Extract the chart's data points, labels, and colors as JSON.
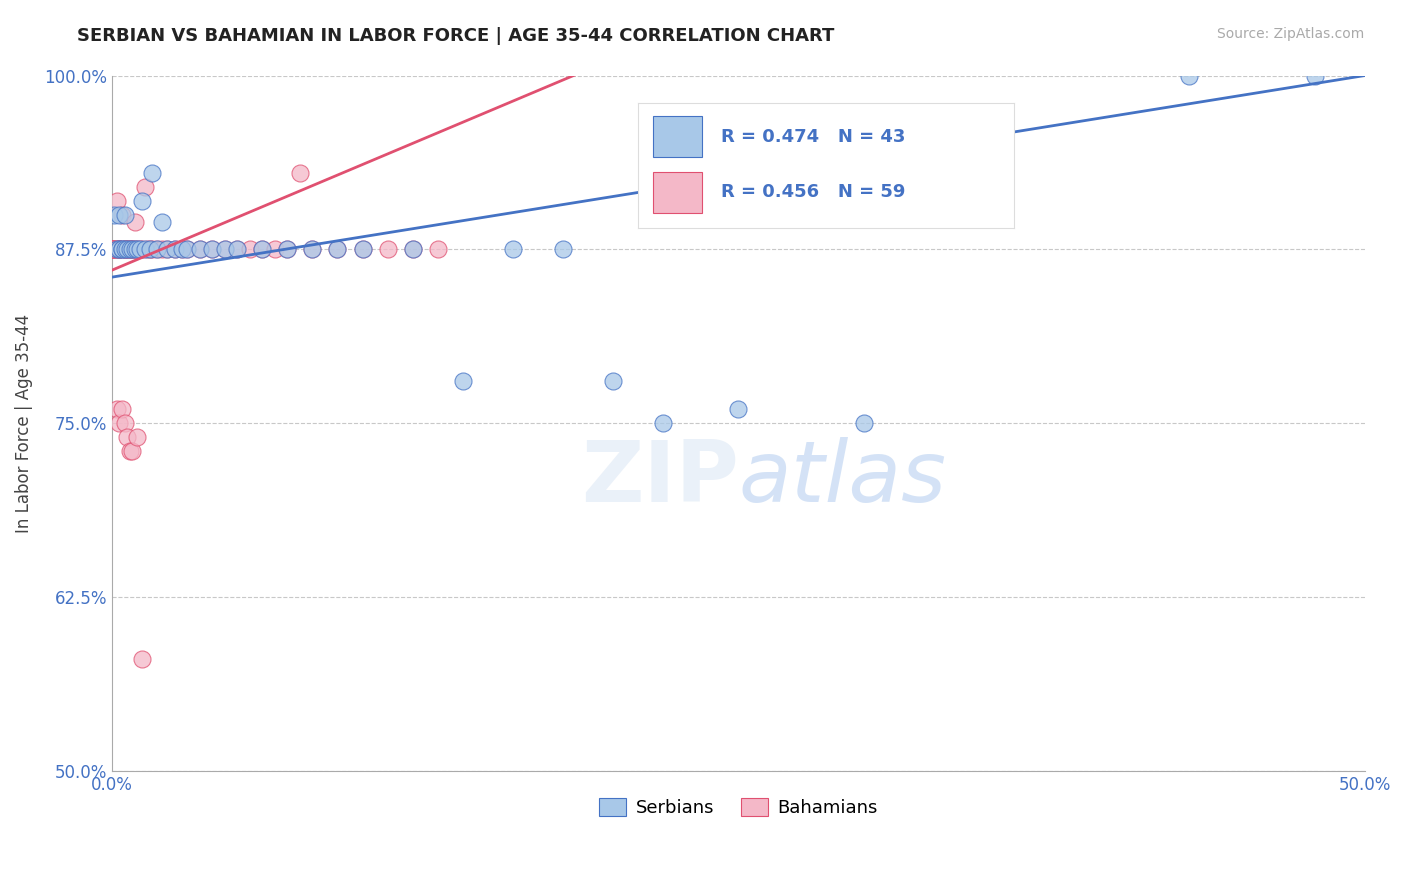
{
  "title": "SERBIAN VS BAHAMIAN IN LABOR FORCE | AGE 35-44 CORRELATION CHART",
  "source": "Source: ZipAtlas.com",
  "ylabel": "In Labor Force | Age 35-44",
  "xlim": [
    0.0,
    0.5
  ],
  "ylim": [
    0.5,
    1.0
  ],
  "yticks": [
    0.5,
    0.625,
    0.75,
    0.875,
    1.0
  ],
  "yticklabels": [
    "50.0%",
    "62.5%",
    "75.0%",
    "87.5%",
    "100.0%"
  ],
  "xtick_show": [
    0.0,
    0.5
  ],
  "xticklabels_show": [
    "0.0%",
    "50.0%"
  ],
  "serbian_color": "#a8c8e8",
  "bahamian_color": "#f4b8c8",
  "serbian_line_color": "#4472c4",
  "bahamian_line_color": "#e05070",
  "R_serbian": 0.474,
  "N_serbian": 43,
  "R_bahamian": 0.456,
  "N_bahamian": 59,
  "serbian_x": [
    0.001,
    0.002,
    0.003,
    0.003,
    0.004,
    0.004,
    0.005,
    0.005,
    0.006,
    0.007,
    0.008,
    0.009,
    0.01,
    0.011,
    0.012,
    0.013,
    0.015,
    0.016,
    0.018,
    0.02,
    0.022,
    0.025,
    0.028,
    0.03,
    0.035,
    0.04,
    0.045,
    0.05,
    0.06,
    0.07,
    0.08,
    0.09,
    0.1,
    0.12,
    0.14,
    0.16,
    0.18,
    0.2,
    0.22,
    0.25,
    0.3,
    0.43,
    0.48
  ],
  "serbian_y": [
    0.9,
    0.875,
    0.875,
    0.9,
    0.875,
    0.875,
    0.875,
    0.9,
    0.875,
    0.875,
    0.875,
    0.875,
    0.875,
    0.875,
    0.91,
    0.875,
    0.875,
    0.93,
    0.875,
    0.895,
    0.875,
    0.875,
    0.875,
    0.875,
    0.875,
    0.875,
    0.875,
    0.875,
    0.875,
    0.875,
    0.875,
    0.875,
    0.875,
    0.875,
    0.78,
    0.875,
    0.875,
    0.78,
    0.75,
    0.76,
    0.75,
    1.0,
    1.0
  ],
  "bahamian_x": [
    0.0,
    0.0,
    0.001,
    0.001,
    0.001,
    0.002,
    0.002,
    0.003,
    0.003,
    0.003,
    0.004,
    0.004,
    0.005,
    0.005,
    0.006,
    0.006,
    0.007,
    0.007,
    0.008,
    0.008,
    0.009,
    0.009,
    0.01,
    0.011,
    0.012,
    0.013,
    0.014,
    0.015,
    0.016,
    0.018,
    0.02,
    0.022,
    0.025,
    0.028,
    0.03,
    0.035,
    0.04,
    0.045,
    0.05,
    0.055,
    0.06,
    0.065,
    0.07,
    0.075,
    0.08,
    0.09,
    0.1,
    0.11,
    0.12,
    0.13,
    0.002,
    0.003,
    0.004,
    0.005,
    0.006,
    0.007,
    0.008,
    0.01,
    0.012
  ],
  "bahamian_y": [
    0.875,
    0.875,
    0.875,
    0.875,
    0.875,
    0.91,
    0.875,
    0.875,
    0.875,
    0.875,
    0.875,
    0.9,
    0.875,
    0.875,
    0.875,
    0.875,
    0.875,
    0.875,
    0.875,
    0.875,
    0.875,
    0.895,
    0.875,
    0.875,
    0.875,
    0.92,
    0.875,
    0.875,
    0.875,
    0.875,
    0.875,
    0.875,
    0.875,
    0.875,
    0.875,
    0.875,
    0.875,
    0.875,
    0.875,
    0.875,
    0.875,
    0.875,
    0.875,
    0.93,
    0.875,
    0.875,
    0.875,
    0.875,
    0.875,
    0.875,
    0.76,
    0.75,
    0.76,
    0.75,
    0.74,
    0.73,
    0.73,
    0.74,
    0.58
  ]
}
